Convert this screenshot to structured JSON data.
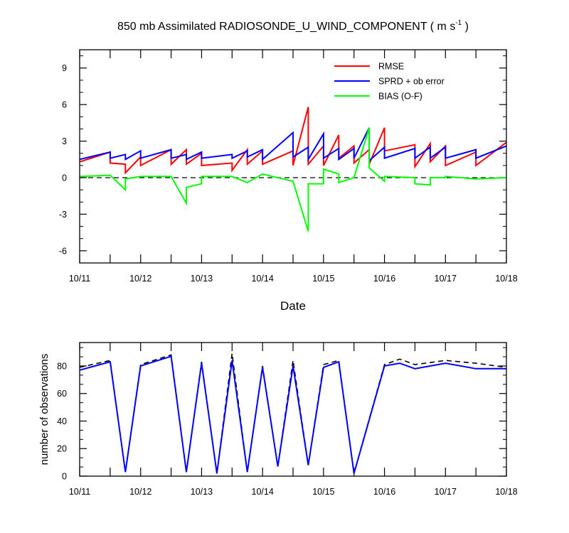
{
  "chart_data": [
    {
      "type": "line",
      "title": "850 mb Assimilated RADIOSONDE_U_WIND_COMPONENT ( m s",
      "title_sup": "-1",
      "title_end": " )",
      "xlabel": "Date",
      "ylabel": "",
      "x_tick_labels": [
        "10/11",
        "10/12",
        "10/13",
        "10/14",
        "10/15",
        "10/16",
        "10/17",
        "10/18"
      ],
      "y_ticks": [
        -6,
        -3,
        0,
        3,
        6,
        9
      ],
      "xlim": [
        0,
        7
      ],
      "ylim": [
        -7,
        10.5
      ],
      "zero_line": "dashed",
      "legend_position": "top-right",
      "series": [
        {
          "name": "RMSE",
          "color": "#ff0000",
          "x": [
            0,
            0.5,
            0.5,
            0.75,
            0.75,
            1,
            1,
            1.5,
            1.5,
            1.75,
            1.75,
            2,
            2,
            2.5,
            2.5,
            2.75,
            2.75,
            3,
            3,
            3.5,
            3.5,
            3.75,
            3.75,
            4,
            4,
            4.25,
            4.25,
            4.5,
            4.5,
            4.75,
            4.75,
            5,
            5,
            5.5,
            5.5,
            5.75,
            5.75,
            6,
            6,
            6.5,
            6.5,
            7
          ],
          "y": [
            1.3,
            2.1,
            1.2,
            1.1,
            0.4,
            1.7,
            1.0,
            2.3,
            1.1,
            2.3,
            1.1,
            2.0,
            1.0,
            1.2,
            0.6,
            2.3,
            1.1,
            2.2,
            1.1,
            2.2,
            1.0,
            5.8,
            1.1,
            2.6,
            1.0,
            3.5,
            1.6,
            2.6,
            1.2,
            2.3,
            1.1,
            4.1,
            2.2,
            2.7,
            0.9,
            2.8,
            1.3,
            2.6,
            1.0,
            2.1,
            1.0,
            2.9
          ]
        },
        {
          "name": "SPRD + ob error",
          "color": "#0000ff",
          "x": [
            0,
            0.5,
            0.5,
            0.75,
            0.75,
            1,
            1,
            1.5,
            1.5,
            1.75,
            1.75,
            2,
            2,
            2.5,
            2.5,
            2.75,
            2.75,
            3,
            3,
            3.5,
            3.5,
            3.75,
            3.75,
            4,
            4,
            4.25,
            4.25,
            4.5,
            4.5,
            4.75,
            4.75,
            5,
            5,
            5.5,
            5.5,
            5.75,
            5.75,
            6,
            6,
            6.5,
            6.5,
            7
          ],
          "y": [
            1.5,
            2.1,
            1.6,
            1.9,
            1.5,
            2.2,
            1.6,
            2.3,
            1.6,
            1.9,
            1.5,
            2.1,
            1.6,
            1.9,
            1.6,
            2.2,
            1.7,
            2.3,
            1.5,
            3.7,
            1.7,
            2.5,
            1.5,
            3.6,
            1.6,
            2.4,
            1.5,
            2.4,
            1.6,
            4.1,
            1.4,
            2.5,
            1.6,
            2.4,
            1.6,
            2.5,
            1.6,
            2.5,
            1.6,
            2.3,
            1.6,
            2.6
          ]
        },
        {
          "name": "BIAS (O-F)",
          "color": "#00ff00",
          "x": [
            0,
            0.5,
            0.75,
            0.75,
            1,
            1.5,
            1.75,
            1.75,
            2,
            2,
            2.5,
            2.75,
            3,
            3.5,
            3.75,
            3.75,
            4,
            4,
            4.25,
            4.25,
            4.5,
            4.5,
            4.75,
            4.75,
            5,
            5,
            5.5,
            5.5,
            5.75,
            5.75,
            6,
            6,
            6.5,
            7
          ],
          "y": [
            0.1,
            0.2,
            -1.0,
            -0.1,
            0.1,
            0.1,
            -2.1,
            -0.8,
            -0.5,
            0.1,
            0.1,
            -0.4,
            0.3,
            -0.3,
            -4.4,
            -0.5,
            -0.5,
            0.7,
            0.3,
            -0.4,
            0.0,
            0.0,
            4.1,
            0.8,
            -0.3,
            0.1,
            0.0,
            -0.5,
            -0.6,
            0.0,
            0.0,
            0.1,
            -0.1,
            0.0
          ]
        }
      ]
    },
    {
      "type": "line",
      "title": "",
      "xlabel": "",
      "ylabel": "number of observations",
      "x_tick_labels": [
        "10/11",
        "10/12",
        "10/13",
        "10/14",
        "10/15",
        "10/16",
        "10/17",
        "10/18"
      ],
      "y_ticks": [
        0,
        20,
        40,
        60,
        80
      ],
      "xlim": [
        0,
        7
      ],
      "ylim": [
        0,
        97
      ],
      "series": [
        {
          "name": "",
          "style": "dashed",
          "color": "#000000",
          "x": [
            0,
            0.5,
            0.75,
            1,
            1.5,
            1.75,
            2,
            2.25,
            2.5,
            2.75,
            3,
            3.25,
            3.5,
            3.75,
            4,
            4.25,
            4.5,
            5,
            5.25,
            5.5,
            6,
            6.5,
            7
          ],
          "y": [
            79,
            84,
            3,
            81,
            88,
            3,
            83,
            2,
            89,
            3,
            80,
            7,
            84,
            8,
            81,
            84,
            2,
            81,
            85,
            81,
            84,
            82,
            79
          ]
        },
        {
          "name": "",
          "style": "solid",
          "color": "#0000ff",
          "x": [
            0,
            0.5,
            0.75,
            1,
            1.5,
            1.75,
            2,
            2.25,
            2.5,
            2.75,
            3,
            3.25,
            3.5,
            3.75,
            4,
            4.25,
            4.5,
            5,
            5.25,
            5.5,
            6,
            6.5,
            7
          ],
          "y": [
            77,
            83,
            3,
            80,
            87,
            3,
            82,
            2,
            84,
            3,
            79,
            7,
            80,
            8,
            79,
            83,
            2,
            80,
            82,
            78,
            82,
            78,
            78
          ]
        }
      ]
    }
  ]
}
